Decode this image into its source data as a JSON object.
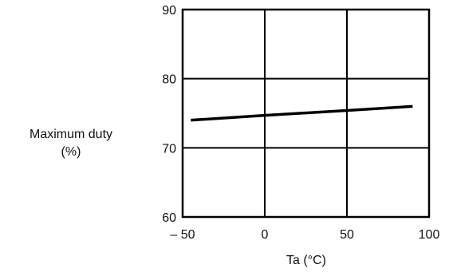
{
  "chart_data": {
    "type": "line",
    "title": "",
    "xlabel": "Ta (°C)",
    "ylabel_line1": "Maximum duty",
    "ylabel_line2": "(%)",
    "xlim": [
      -50,
      100
    ],
    "ylim": [
      60,
      90
    ],
    "x_ticks": [
      -50,
      0,
      50,
      100
    ],
    "x_tick_labels": [
      "– 50",
      "0",
      "50",
      "100"
    ],
    "y_ticks": [
      60,
      70,
      80,
      90
    ],
    "y_tick_labels": [
      "60",
      "70",
      "80",
      "90"
    ],
    "grid": true,
    "series": [
      {
        "x": [
          -45,
          0,
          50,
          90
        ],
        "y": [
          74.0,
          74.7,
          75.4,
          76.0
        ]
      }
    ]
  }
}
